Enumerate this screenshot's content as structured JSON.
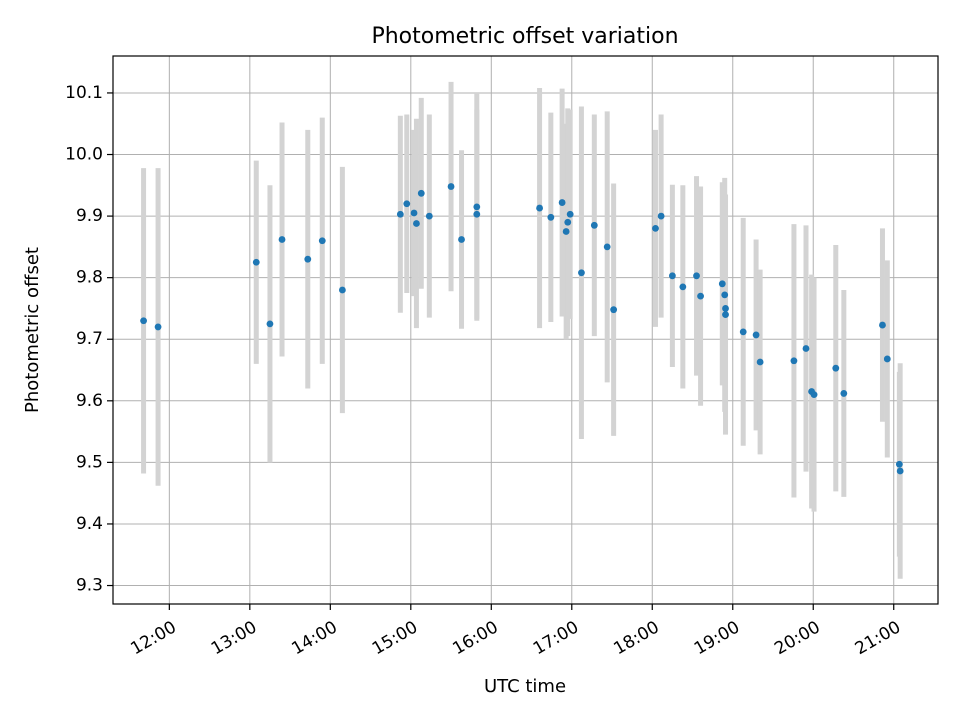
{
  "chart_data": {
    "type": "scatter",
    "title": "Photometric offset variation",
    "xlabel": "UTC time",
    "ylabel": "Photometric offset",
    "x_unit": "decimal hours UTC",
    "xlim": [
      11.3,
      21.55
    ],
    "ylim": [
      9.27,
      10.16
    ],
    "x_ticks": [
      {
        "value": 12,
        "label": "12:00"
      },
      {
        "value": 13,
        "label": "13:00"
      },
      {
        "value": 14,
        "label": "14:00"
      },
      {
        "value": 15,
        "label": "15:00"
      },
      {
        "value": 16,
        "label": "16:00"
      },
      {
        "value": 17,
        "label": "17:00"
      },
      {
        "value": 18,
        "label": "18:00"
      },
      {
        "value": 19,
        "label": "19:00"
      },
      {
        "value": 20,
        "label": "20:00"
      },
      {
        "value": 21,
        "label": "21:00"
      }
    ],
    "y_ticks": [
      {
        "value": 9.3,
        "label": "9.3"
      },
      {
        "value": 9.4,
        "label": "9.4"
      },
      {
        "value": 9.5,
        "label": "9.5"
      },
      {
        "value": 9.6,
        "label": "9.6"
      },
      {
        "value": 9.7,
        "label": "9.7"
      },
      {
        "value": 9.8,
        "label": "9.8"
      },
      {
        "value": 9.9,
        "label": "9.9"
      },
      {
        "value": 10.0,
        "label": "10.0"
      },
      {
        "value": 10.1,
        "label": "10.1"
      }
    ],
    "grid": true,
    "colors": {
      "points": "#1f77b4",
      "errorbars": "#d3d3d3",
      "grid": "#b0b0b0"
    },
    "series": [
      {
        "name": "offset",
        "x": [
          11.68,
          11.86,
          13.08,
          13.25,
          13.4,
          13.72,
          13.9,
          14.15,
          14.87,
          14.95,
          15.04,
          15.07,
          15.13,
          15.23,
          15.5,
          15.63,
          15.82,
          15.82,
          16.6,
          16.74,
          16.88,
          16.93,
          16.95,
          16.98,
          17.12,
          17.28,
          17.44,
          17.52,
          18.04,
          18.11,
          18.25,
          18.38,
          18.55,
          18.6,
          18.87,
          18.9,
          18.91,
          18.91,
          19.13,
          19.29,
          19.34,
          19.76,
          19.91,
          19.98,
          20.01,
          20.28,
          20.38,
          20.86,
          20.92,
          21.07,
          21.08
        ],
        "y": [
          9.73,
          9.72,
          9.825,
          9.725,
          9.862,
          9.83,
          9.86,
          9.78,
          9.903,
          9.92,
          9.905,
          9.888,
          9.937,
          9.9,
          9.948,
          9.862,
          9.903,
          9.915,
          9.913,
          9.898,
          9.922,
          9.875,
          9.89,
          9.903,
          9.808,
          9.885,
          9.85,
          9.748,
          9.88,
          9.9,
          9.803,
          9.785,
          9.803,
          9.77,
          9.79,
          9.772,
          9.75,
          9.74,
          9.712,
          9.707,
          9.663,
          9.665,
          9.685,
          9.615,
          9.61,
          9.653,
          9.612,
          9.723,
          9.668,
          9.497,
          9.486
        ],
        "yerr": [
          0.248,
          0.258,
          0.165,
          0.225,
          0.19,
          0.21,
          0.2,
          0.2,
          0.16,
          0.145,
          0.135,
          0.17,
          0.155,
          0.165,
          0.17,
          0.145,
          0.17,
          0.185,
          0.195,
          0.17,
          0.185,
          0.175,
          0.185,
          0.17,
          0.27,
          0.18,
          0.22,
          0.205,
          0.16,
          0.165,
          0.148,
          0.165,
          0.162,
          0.178,
          0.165,
          0.19,
          0.18,
          0.195,
          0.185,
          0.155,
          0.15,
          0.222,
          0.2,
          0.19,
          0.19,
          0.2,
          0.168,
          0.157,
          0.16,
          0.15,
          0.175
        ]
      }
    ]
  }
}
